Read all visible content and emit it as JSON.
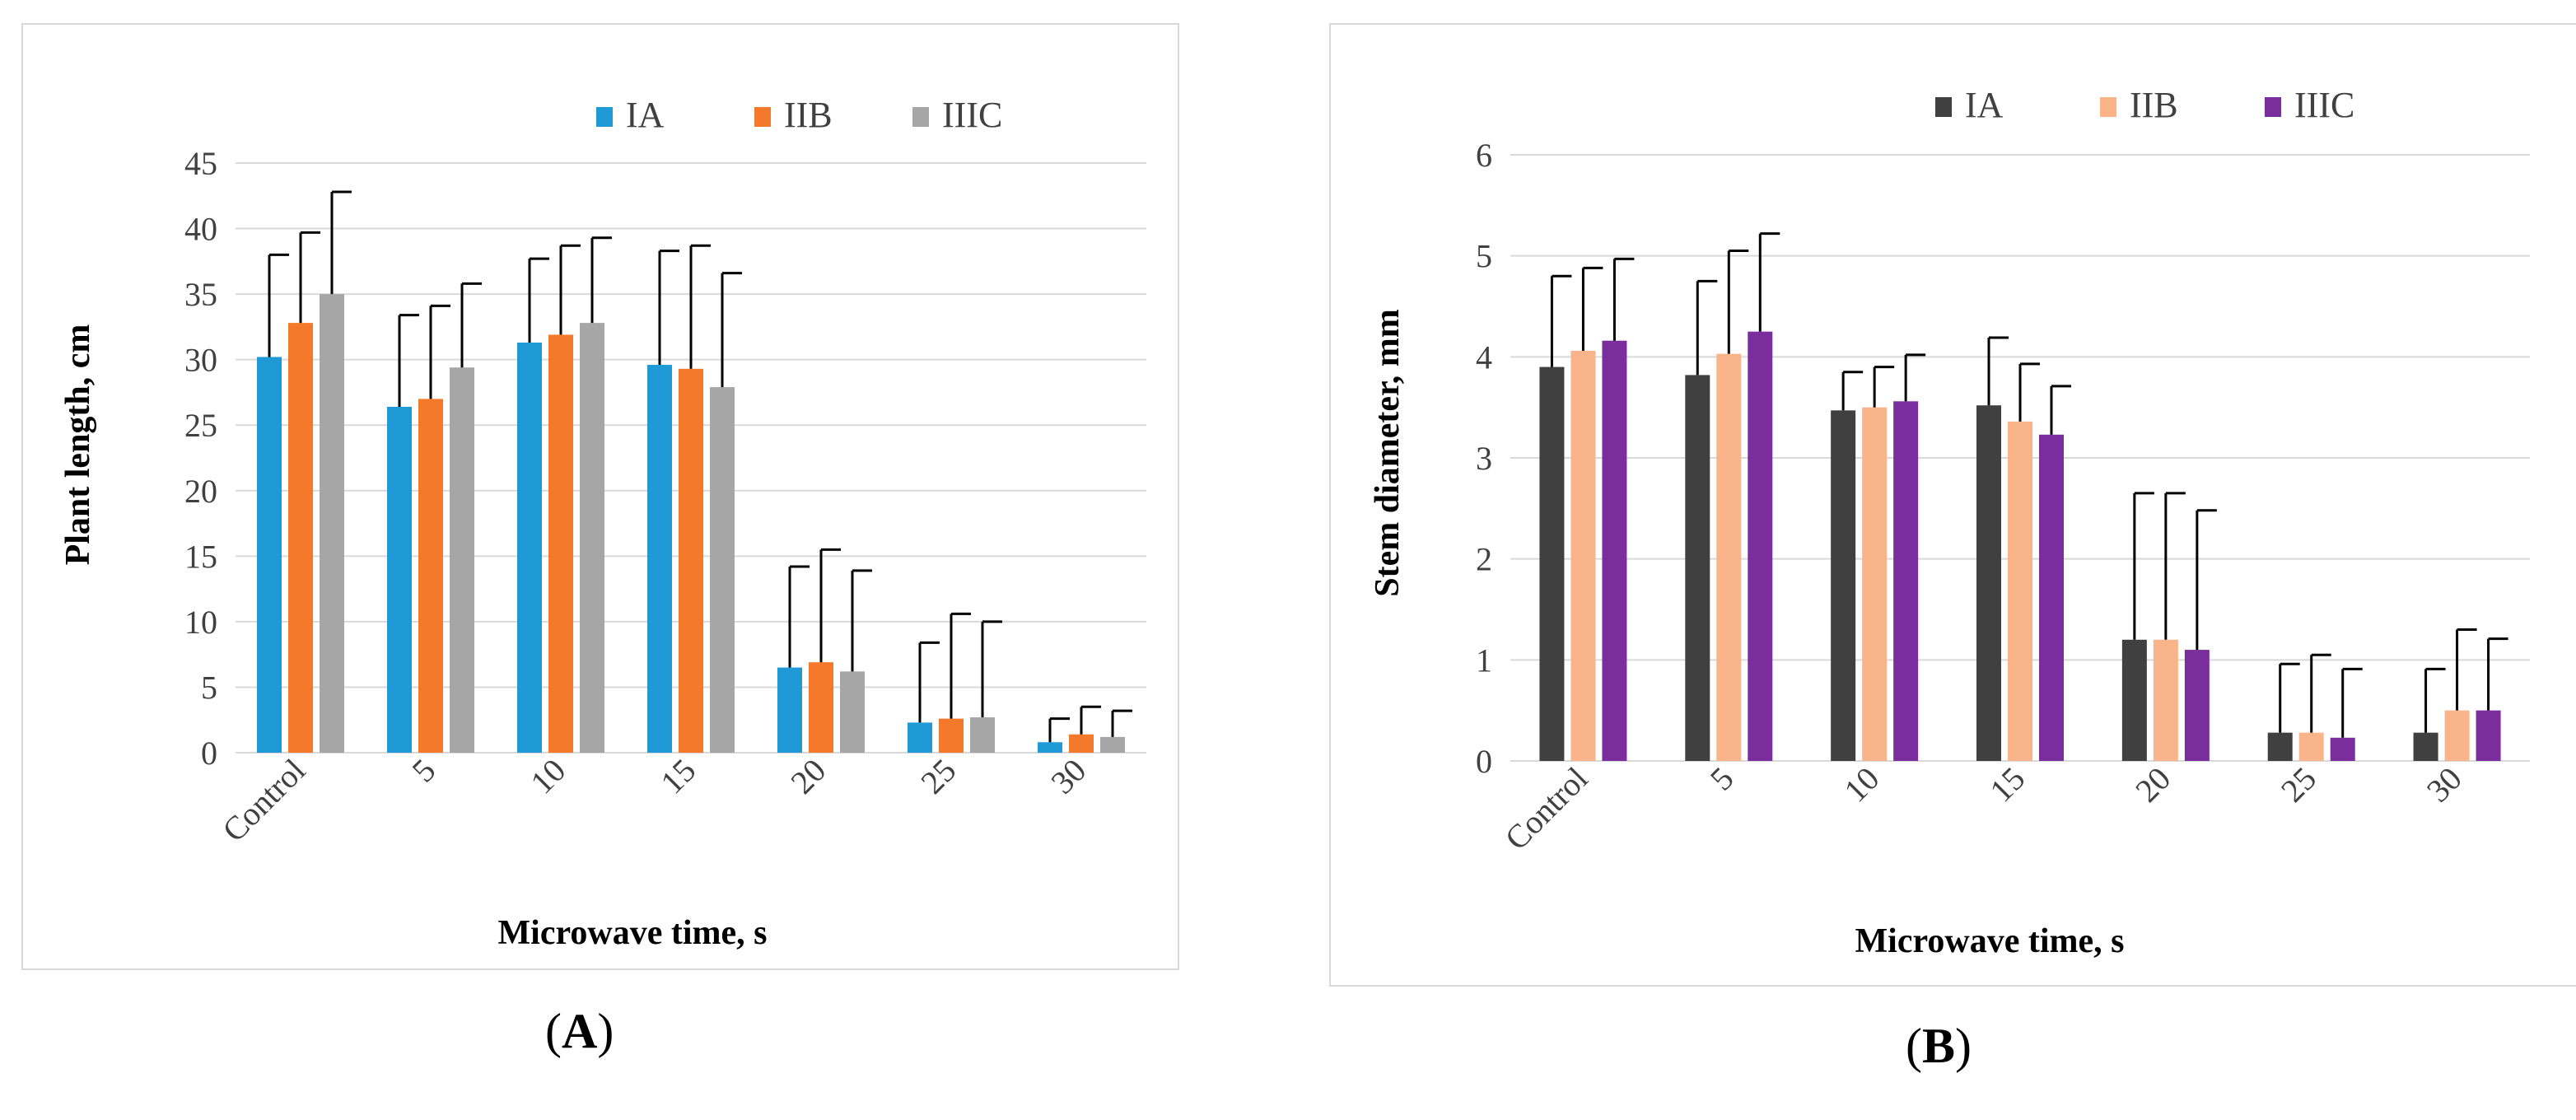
{
  "panels": [
    {
      "label": "A"
    },
    {
      "label": "B"
    }
  ],
  "chart_data": [
    {
      "type": "bar",
      "panel": "A",
      "title": "",
      "xlabel": "Microwave time, s",
      "ylabel": "Plant length, cm",
      "ylim": [
        0,
        45
      ],
      "yticks": [
        0,
        5,
        10,
        15,
        20,
        25,
        30,
        35,
        40,
        45
      ],
      "grid": true,
      "legend_position": "top-right",
      "categories": [
        "Control",
        "5",
        "10",
        "15",
        "20",
        "25",
        "30"
      ],
      "series": [
        {
          "name": "IA",
          "color": "#1f9ad6",
          "values": [
            30.2,
            26.4,
            31.3,
            29.6,
            6.5,
            2.3,
            0.8
          ],
          "errors": [
            7.8,
            7.0,
            6.4,
            8.7,
            7.7,
            6.1,
            1.8
          ]
        },
        {
          "name": "IIB",
          "color": "#f5792a",
          "values": [
            32.8,
            27.0,
            31.9,
            29.3,
            6.9,
            2.6,
            1.4
          ],
          "errors": [
            6.9,
            7.1,
            6.8,
            9.4,
            8.6,
            8.0,
            2.1
          ]
        },
        {
          "name": "IIIC",
          "color": "#a6a6a6",
          "values": [
            35.0,
            29.4,
            32.8,
            27.9,
            6.2,
            2.7,
            1.2
          ],
          "errors": [
            7.8,
            6.4,
            6.5,
            8.7,
            7.7,
            7.3,
            2.0
          ]
        }
      ]
    },
    {
      "type": "bar",
      "panel": "B",
      "title": "",
      "xlabel": "Microwave time, s",
      "ylabel": "Stem diameter, mm",
      "ylim": [
        0,
        6
      ],
      "yticks": [
        0,
        1,
        2,
        3,
        4,
        5,
        6
      ],
      "grid": true,
      "legend_position": "top-right",
      "categories": [
        "Control",
        "5",
        "10",
        "15",
        "20",
        "25",
        "30"
      ],
      "series": [
        {
          "name": "IA",
          "color": "#404040",
          "values": [
            3.9,
            3.82,
            3.47,
            3.52,
            1.2,
            0.28,
            0.28
          ],
          "errors": [
            0.9,
            0.93,
            0.38,
            0.67,
            1.45,
            0.68,
            0.63
          ]
        },
        {
          "name": "IIB",
          "color": "#f9b48a",
          "values": [
            4.06,
            4.03,
            3.5,
            3.36,
            1.2,
            0.28,
            0.5
          ],
          "errors": [
            0.82,
            1.02,
            0.4,
            0.57,
            1.45,
            0.77,
            0.8
          ]
        },
        {
          "name": "IIIC",
          "color": "#7a2e9e",
          "values": [
            4.16,
            4.25,
            3.56,
            3.23,
            1.1,
            0.23,
            0.5
          ],
          "errors": [
            0.81,
            0.97,
            0.46,
            0.48,
            1.38,
            0.68,
            0.71
          ]
        }
      ]
    }
  ]
}
